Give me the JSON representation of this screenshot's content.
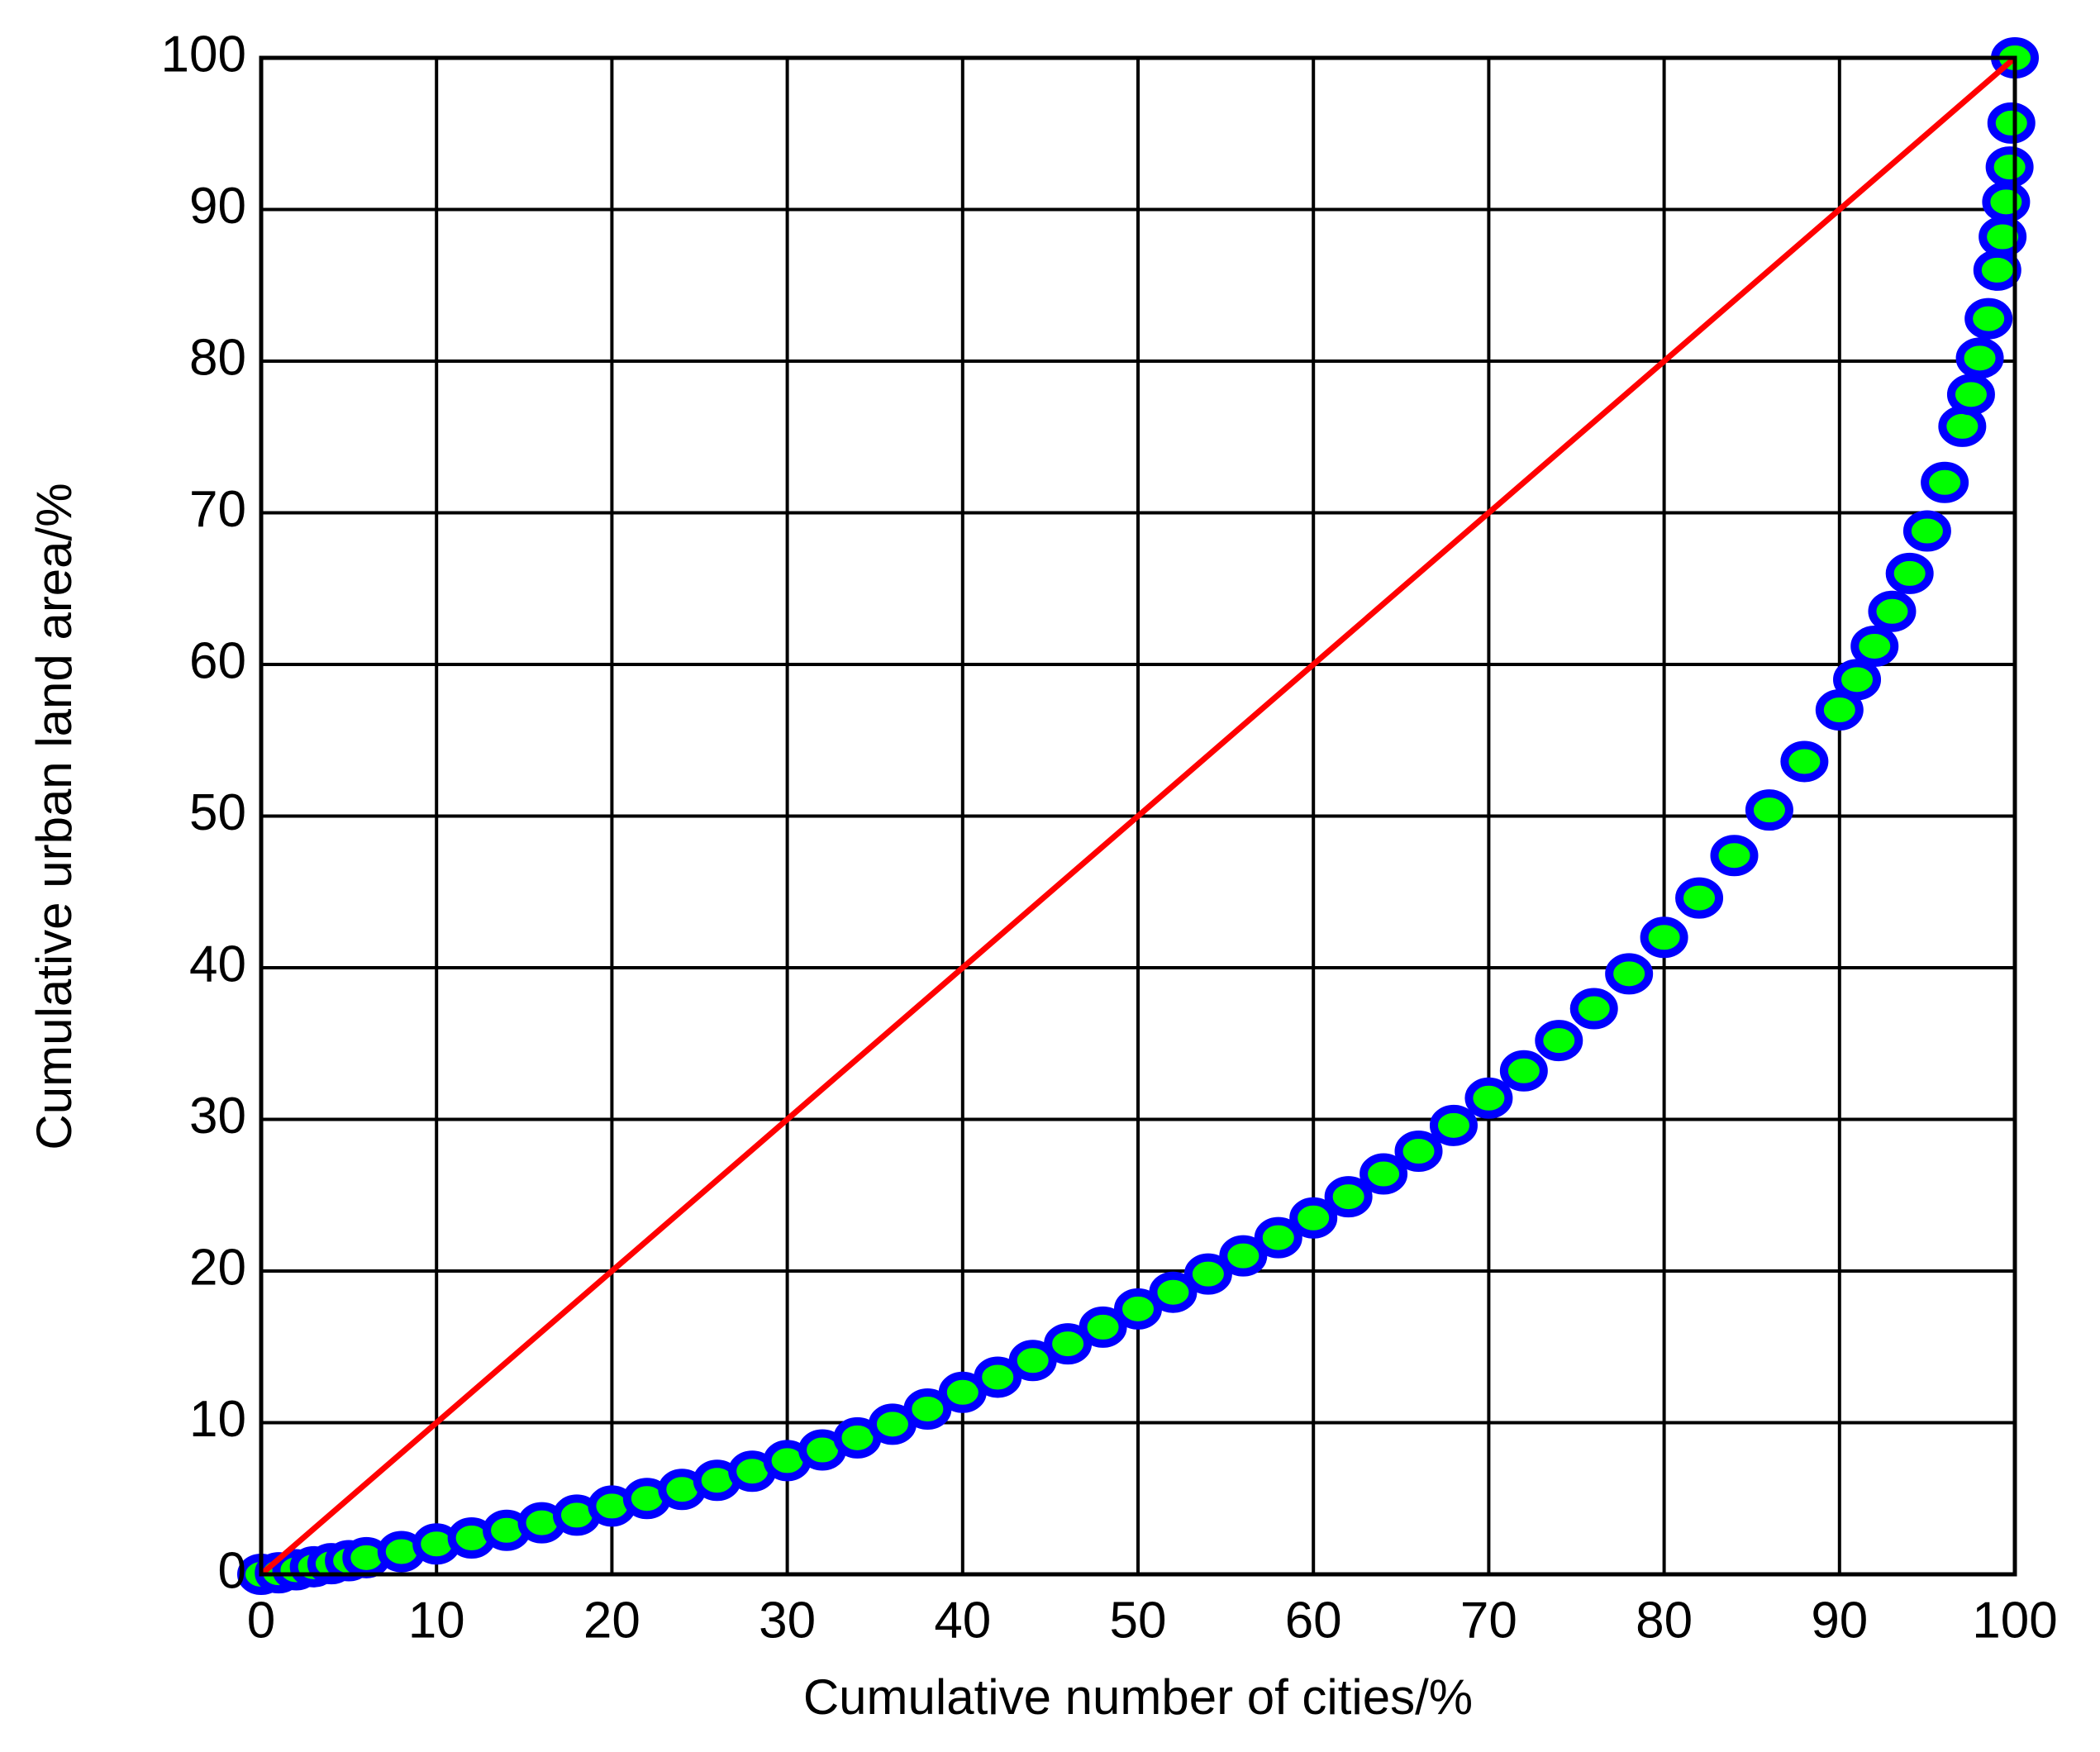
{
  "chart_data": {
    "type": "scatter",
    "xlabel": "Cumulative number of cities/%",
    "ylabel": "Cumulative urban land area/%",
    "xlim": [
      0,
      100
    ],
    "ylim": [
      0,
      100
    ],
    "xticks": [
      0,
      10,
      20,
      30,
      40,
      50,
      60,
      70,
      80,
      90,
      100
    ],
    "yticks": [
      0,
      10,
      20,
      30,
      40,
      50,
      60,
      70,
      80,
      90,
      100
    ],
    "grid": true,
    "series": [
      {
        "type": "scatter",
        "color": "#00ff00",
        "edgecolor": "#0000ff",
        "x": [
          0,
          1,
          2,
          3,
          4,
          5,
          6,
          8,
          10,
          12,
          14,
          16,
          18,
          20,
          22,
          24,
          26,
          28,
          30,
          32,
          34,
          36,
          38,
          40,
          42,
          44,
          46,
          48,
          50,
          52,
          54,
          56,
          58,
          60,
          62,
          64,
          66,
          68,
          70,
          72,
          74,
          76,
          78,
          80,
          82,
          84,
          86,
          88,
          90,
          91,
          92,
          93,
          94,
          95,
          96,
          97,
          97.5,
          98,
          98.5,
          99,
          99.3,
          99.5,
          99.7,
          99.8,
          100
        ],
        "values": [
          0,
          0.1,
          0.3,
          0.5,
          0.7,
          0.9,
          1.1,
          1.5,
          2,
          2.4,
          2.9,
          3.4,
          3.9,
          4.5,
          5.0,
          5.6,
          6.2,
          6.8,
          7.5,
          8.2,
          9,
          9.9,
          10.9,
          12,
          13,
          14.1,
          15.2,
          16.3,
          17.5,
          18.6,
          19.8,
          21,
          22.2,
          23.5,
          24.9,
          26.4,
          27.9,
          29.6,
          31.4,
          33.2,
          35.2,
          37.3,
          39.6,
          42,
          44.6,
          47.4,
          50.4,
          53.6,
          57,
          59,
          61.2,
          63.5,
          66,
          68.8,
          72,
          75.7,
          77.8,
          80.2,
          82.8,
          86,
          88.2,
          90.5,
          92.8,
          95.7,
          100
        ]
      },
      {
        "type": "line",
        "color": "#ff0000",
        "x": [
          0,
          100
        ],
        "values": [
          0,
          100
        ]
      }
    ]
  }
}
